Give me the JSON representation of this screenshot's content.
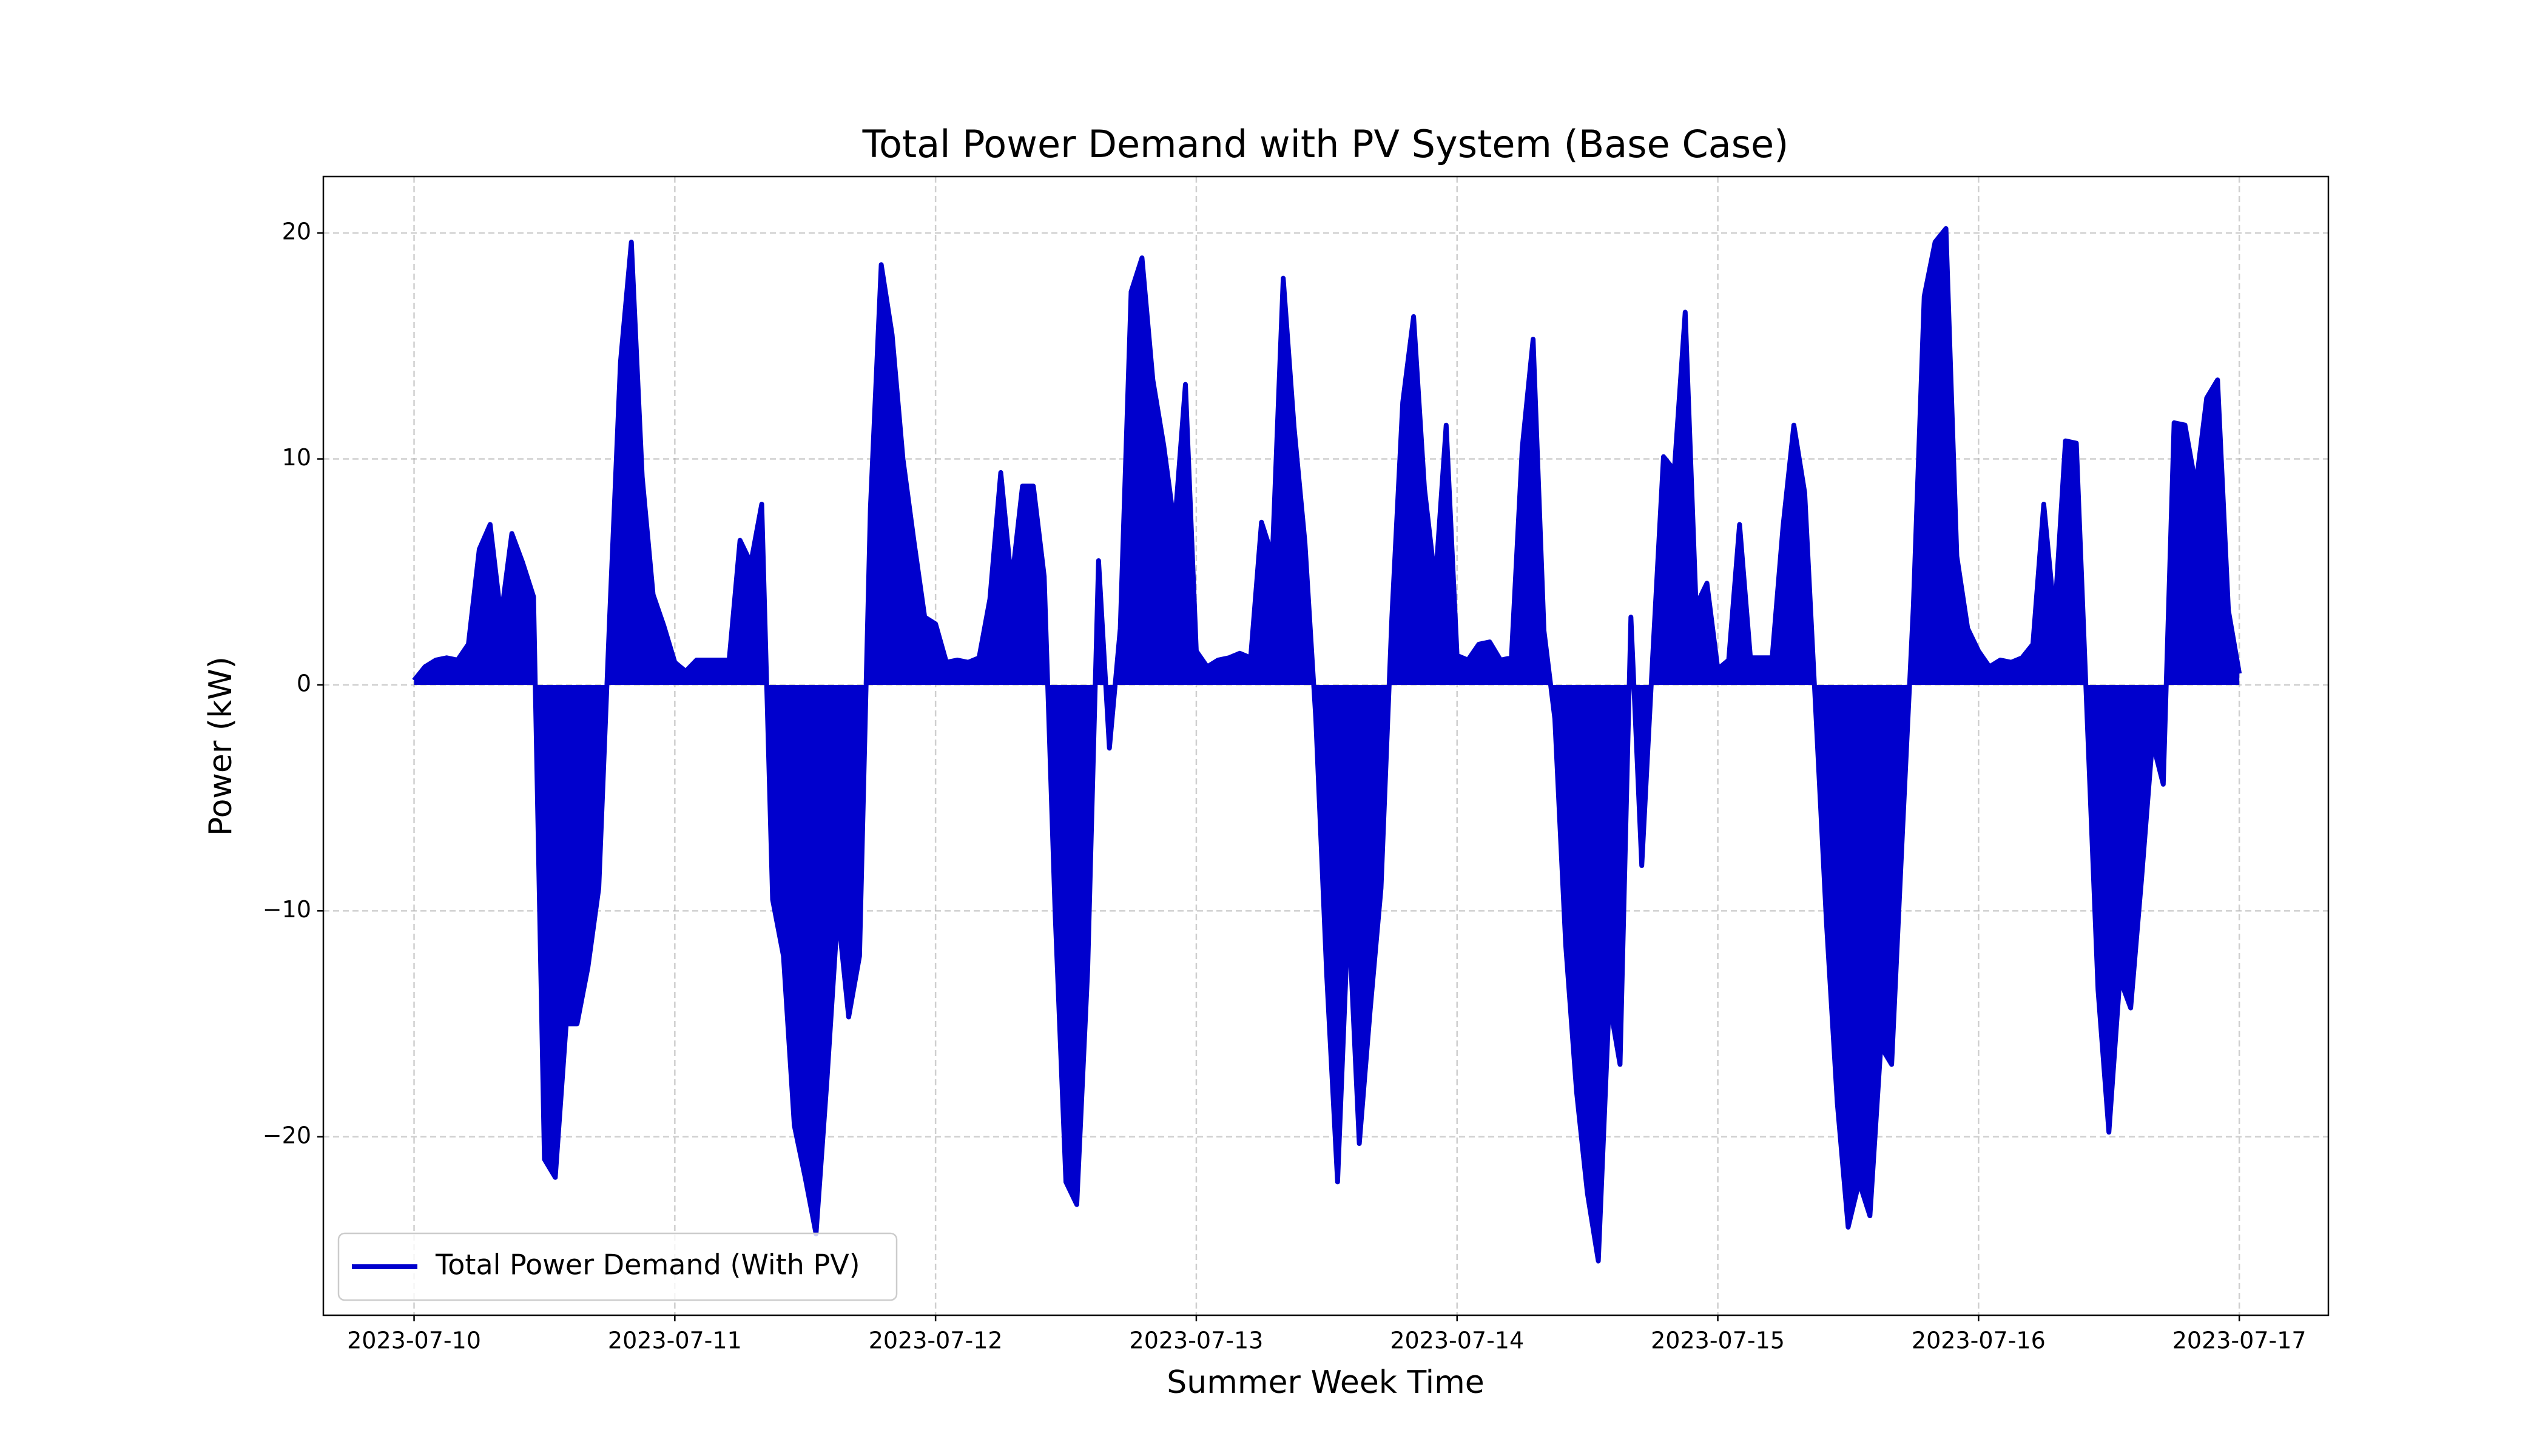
{
  "chart_data": {
    "type": "area",
    "title": "Total Power Demand with PV System (Base Case)",
    "x_label": "Summer Week Time",
    "y_label": "Power (kW)",
    "x": [
      "2023-07-10 00:00",
      "2023-07-10 01:00",
      "2023-07-10 02:00",
      "2023-07-10 03:00",
      "2023-07-10 04:00",
      "2023-07-10 05:00",
      "2023-07-10 06:00",
      "2023-07-10 07:00",
      "2023-07-10 08:00",
      "2023-07-10 09:00",
      "2023-07-10 10:00",
      "2023-07-10 11:00",
      "2023-07-10 12:00",
      "2023-07-10 13:00",
      "2023-07-10 14:00",
      "2023-07-10 15:00",
      "2023-07-10 16:00",
      "2023-07-10 17:00",
      "2023-07-10 18:00",
      "2023-07-10 19:00",
      "2023-07-10 20:00",
      "2023-07-10 21:00",
      "2023-07-10 22:00",
      "2023-07-10 23:00",
      "2023-07-11 00:00",
      "2023-07-11 01:00",
      "2023-07-11 02:00",
      "2023-07-11 03:00",
      "2023-07-11 04:00",
      "2023-07-11 05:00",
      "2023-07-11 06:00",
      "2023-07-11 07:00",
      "2023-07-11 08:00",
      "2023-07-11 09:00",
      "2023-07-11 10:00",
      "2023-07-11 11:00",
      "2023-07-11 12:00",
      "2023-07-11 13:00",
      "2023-07-11 14:00",
      "2023-07-11 15:00",
      "2023-07-11 16:00",
      "2023-07-11 17:00",
      "2023-07-11 18:00",
      "2023-07-11 19:00",
      "2023-07-11 20:00",
      "2023-07-11 21:00",
      "2023-07-11 22:00",
      "2023-07-11 23:00",
      "2023-07-12 00:00",
      "2023-07-12 01:00",
      "2023-07-12 02:00",
      "2023-07-12 03:00",
      "2023-07-12 04:00",
      "2023-07-12 05:00",
      "2023-07-12 06:00",
      "2023-07-12 07:00",
      "2023-07-12 08:00",
      "2023-07-12 09:00",
      "2023-07-12 10:00",
      "2023-07-12 11:00",
      "2023-07-12 12:00",
      "2023-07-12 13:00",
      "2023-07-12 14:00",
      "2023-07-12 15:00",
      "2023-07-12 16:00",
      "2023-07-12 17:00",
      "2023-07-12 18:00",
      "2023-07-12 19:00",
      "2023-07-12 20:00",
      "2023-07-12 21:00",
      "2023-07-12 22:00",
      "2023-07-12 23:00",
      "2023-07-13 00:00",
      "2023-07-13 01:00",
      "2023-07-13 02:00",
      "2023-07-13 03:00",
      "2023-07-13 04:00",
      "2023-07-13 05:00",
      "2023-07-13 06:00",
      "2023-07-13 07:00",
      "2023-07-13 08:00",
      "2023-07-13 09:00",
      "2023-07-13 10:00",
      "2023-07-13 11:00",
      "2023-07-13 12:00",
      "2023-07-13 13:00",
      "2023-07-13 14:00",
      "2023-07-13 15:00",
      "2023-07-13 16:00",
      "2023-07-13 17:00",
      "2023-07-13 18:00",
      "2023-07-13 19:00",
      "2023-07-13 20:00",
      "2023-07-13 21:00",
      "2023-07-13 22:00",
      "2023-07-13 23:00",
      "2023-07-14 00:00",
      "2023-07-14 01:00",
      "2023-07-14 02:00",
      "2023-07-14 03:00",
      "2023-07-14 04:00",
      "2023-07-14 05:00",
      "2023-07-14 06:00",
      "2023-07-14 07:00",
      "2023-07-14 08:00",
      "2023-07-14 09:00",
      "2023-07-14 10:00",
      "2023-07-14 11:00",
      "2023-07-14 12:00",
      "2023-07-14 13:00",
      "2023-07-14 14:00",
      "2023-07-14 15:00",
      "2023-07-14 16:00",
      "2023-07-14 17:00",
      "2023-07-14 18:00",
      "2023-07-14 19:00",
      "2023-07-14 20:00",
      "2023-07-14 21:00",
      "2023-07-14 22:00",
      "2023-07-14 23:00",
      "2023-07-15 00:00",
      "2023-07-15 01:00",
      "2023-07-15 02:00",
      "2023-07-15 03:00",
      "2023-07-15 04:00",
      "2023-07-15 05:00",
      "2023-07-15 06:00",
      "2023-07-15 07:00",
      "2023-07-15 08:00",
      "2023-07-15 09:00",
      "2023-07-15 10:00",
      "2023-07-15 11:00",
      "2023-07-15 12:00",
      "2023-07-15 13:00",
      "2023-07-15 14:00",
      "2023-07-15 15:00",
      "2023-07-15 16:00",
      "2023-07-15 17:00",
      "2023-07-15 18:00",
      "2023-07-15 19:00",
      "2023-07-15 20:00",
      "2023-07-15 21:00",
      "2023-07-15 22:00",
      "2023-07-15 23:00",
      "2023-07-16 00:00",
      "2023-07-16 01:00",
      "2023-07-16 02:00",
      "2023-07-16 03:00",
      "2023-07-16 04:00",
      "2023-07-16 05:00",
      "2023-07-16 06:00",
      "2023-07-16 07:00",
      "2023-07-16 08:00",
      "2023-07-16 09:00",
      "2023-07-16 10:00",
      "2023-07-16 11:00",
      "2023-07-16 12:00",
      "2023-07-16 13:00",
      "2023-07-16 14:00",
      "2023-07-16 15:00",
      "2023-07-16 16:00",
      "2023-07-16 17:00",
      "2023-07-16 18:00",
      "2023-07-16 19:00",
      "2023-07-16 20:00",
      "2023-07-16 21:00",
      "2023-07-16 22:00",
      "2023-07-16 23:00",
      "2023-07-17 00:00"
    ],
    "series": [
      {
        "name": "Total Power Demand (With PV)",
        "color": "#0000cd",
        "values": [
          0.2,
          0.8,
          1.1,
          1.2,
          1.1,
          1.8,
          6.0,
          7.1,
          3.0,
          6.7,
          5.4,
          3.9,
          -21,
          -21.8,
          -15,
          -15,
          -12.5,
          -9,
          3.0,
          14.3,
          19.6,
          9.2,
          4.0,
          2.6,
          1.0,
          0.6,
          1.1,
          1.1,
          1.1,
          1.1,
          6.4,
          5.4,
          8.0,
          -9.5,
          -12,
          -19.5,
          -21.8,
          -24.3,
          -17.5,
          -10,
          -14.7,
          -12,
          7.8,
          18.6,
          15.5,
          10,
          6.4,
          3.0,
          2.7,
          1.0,
          1.1,
          1.0,
          1.2,
          3.8,
          9.4,
          4.5,
          8.8,
          8.8,
          4.8,
          -10,
          -22,
          -23,
          -12.6,
          5.5,
          -2.8,
          2.5,
          17.4,
          18.9,
          13.5,
          10.6,
          7.0,
          13.3,
          1.5,
          0.8,
          1.1,
          1.2,
          1.4,
          1.2,
          7.2,
          5.7,
          18.0,
          11.4,
          6.3,
          -1.5,
          -12.8,
          -22,
          -10,
          -20.3,
          -14.4,
          -9,
          3.0,
          12.5,
          16.3,
          8.7,
          4.5,
          11.5,
          1.3,
          1.1,
          1.8,
          1.9,
          1.1,
          1.2,
          10.5,
          15.3,
          2.4,
          -1.5,
          -11.5,
          -18,
          -22.5,
          -25.5,
          -14,
          -16.8,
          3.0,
          -8,
          1.2,
          10.1,
          9.5,
          16.5,
          3.5,
          4.5,
          0.7,
          1.1,
          7.1,
          1.2,
          1.2,
          1.2,
          7.0,
          11.5,
          8.5,
          -1,
          -10.5,
          -18.5,
          -24,
          -22,
          -23.5,
          -16,
          -16.8,
          -6.5,
          3.5,
          17.2,
          19.6,
          20.2,
          5.7,
          2.5,
          1.5,
          0.8,
          1.1,
          1.0,
          1.2,
          1.8,
          8.0,
          3.0,
          10.8,
          10.7,
          -1.5,
          -13.5,
          -19.8,
          -13,
          -14.3,
          -8.6,
          -2.5,
          -4.4,
          11.6,
          11.5,
          8.8,
          12.7,
          13.5,
          3.3,
          0.5
        ]
      }
    ],
    "xlim": [
      "2023-07-09 15:39",
      "2023-07-17 08:12"
    ],
    "xticks": [
      "2023-07-10",
      "2023-07-11",
      "2023-07-12",
      "2023-07-13",
      "2023-07-14",
      "2023-07-15",
      "2023-07-16",
      "2023-07-17"
    ],
    "ylim": [
      -27.9,
      22.5
    ],
    "yticks": [
      {
        "value": -20,
        "label": "−20"
      },
      {
        "value": -10,
        "label": "−10"
      },
      0,
      10,
      20
    ],
    "grid": true,
    "legend": "lower left"
  }
}
